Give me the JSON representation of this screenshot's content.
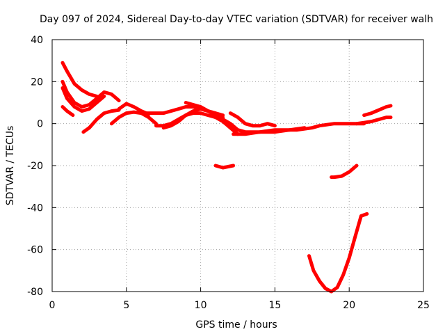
{
  "chart_data": {
    "type": "line",
    "title": "Day 097 of 2024, Sidereal Day-to-day VTEC variation (SDTVAR) for receiver walh",
    "xlabel": "GPS time / hours",
    "ylabel": "SDTVAR / TECUs",
    "xlim": [
      0,
      25
    ],
    "ylim": [
      -80,
      40
    ],
    "xticks": [
      0,
      5,
      10,
      15,
      20,
      25
    ],
    "yticks": [
      -80,
      -60,
      -40,
      -20,
      0,
      20,
      40
    ],
    "grid": true,
    "legend": "none",
    "color": "#ff0000",
    "series": [
      {
        "x": [
          0.7,
          1.0,
          1.5,
          2.0,
          2.5,
          3.0
        ],
        "y": [
          29,
          25,
          19,
          16,
          14,
          13
        ]
      },
      {
        "x": [
          0.7,
          1.0,
          1.5,
          2.0,
          2.5,
          3.0,
          3.5,
          4.0,
          4.5
        ],
        "y": [
          20,
          15,
          10,
          8,
          9,
          12,
          15,
          14,
          11
        ]
      },
      {
        "x": [
          0.7,
          1.0,
          1.5,
          2.0,
          2.5,
          3.0,
          3.5
        ],
        "y": [
          17,
          12,
          8,
          6,
          7,
          10,
          13
        ]
      },
      {
        "x": [
          0.7,
          1.0,
          1.4
        ],
        "y": [
          8,
          6,
          4
        ]
      },
      {
        "x": [
          2.1,
          2.5,
          3.0,
          3.5,
          4.0,
          4.5
        ],
        "y": [
          -4,
          -2,
          2,
          5,
          6,
          6.5
        ]
      },
      {
        "x": [
          4.0,
          4.5,
          5.0,
          5.5,
          6.0,
          6.5,
          7.0
        ],
        "y": [
          0,
          3,
          5,
          5.5,
          5,
          3,
          0
        ]
      },
      {
        "x": [
          4.5,
          5.0,
          5.5,
          6.0,
          6.5
        ],
        "y": [
          7,
          9.5,
          8,
          6,
          4.5
        ]
      },
      {
        "x": [
          6.0,
          6.5,
          7.0,
          7.5
        ],
        "y": [
          5,
          5,
          5,
          5
        ]
      },
      {
        "x": [
          7.0,
          7.5,
          8.0,
          8.5,
          9.0,
          9.5,
          10.0,
          10.5,
          11.0,
          11.5,
          12.0,
          12.5
        ],
        "y": [
          -1,
          -1,
          0,
          2,
          4,
          5,
          5,
          4,
          3,
          1,
          -2,
          -5
        ]
      },
      {
        "x": [
          7.5,
          8.0,
          8.5,
          9.0,
          9.5,
          10.0,
          10.5,
          11.0,
          11.5
        ],
        "y": [
          -2,
          -1,
          1,
          4,
          6,
          7,
          6,
          5,
          4
        ]
      },
      {
        "x": [
          7.5,
          8.0,
          8.5,
          9.0,
          9.5,
          10.0,
          10.5,
          11.0
        ],
        "y": [
          5,
          6,
          7,
          8,
          8,
          7,
          6,
          5
        ]
      },
      {
        "x": [
          9.0,
          9.5,
          10.0,
          10.5,
          11.0,
          11.5
        ],
        "y": [
          10,
          9,
          8,
          6,
          4,
          3
        ]
      },
      {
        "x": [
          11.0,
          11.5,
          12.0,
          12.5,
          13.0,
          13.5,
          14.0,
          14.5,
          15.0,
          15.5,
          16.0,
          16.5,
          17.0
        ],
        "y": [
          3,
          2,
          0,
          -3,
          -4,
          -4,
          -4,
          -3.5,
          -3,
          -3,
          -3,
          -2.5,
          -2
        ]
      },
      {
        "x": [
          12.0,
          12.5,
          13.0,
          13.5,
          14.0,
          14.5,
          15.0
        ],
        "y": [
          5,
          3,
          0,
          -1,
          -1,
          0,
          -1
        ]
      },
      {
        "x": [
          12.2,
          12.5,
          13.0,
          13.5,
          14.0,
          14.5,
          15.0,
          15.5,
          16.0,
          16.5,
          17.0,
          17.5,
          18.0,
          18.5,
          19.0,
          19.5,
          20.0,
          20.5,
          21.0
        ],
        "y": [
          -5,
          -5,
          -5,
          -4.5,
          -4,
          -4,
          -4,
          -3.5,
          -3,
          -3,
          -2.5,
          -2,
          -1,
          -0.5,
          0,
          0,
          0,
          0,
          0
        ]
      },
      {
        "x": [
          11.0,
          11.5,
          12.2
        ],
        "y": [
          -20,
          -21,
          -20
        ]
      },
      {
        "x": [
          18.8,
          19.0,
          19.5,
          20.0,
          20.5
        ],
        "y": [
          -25.5,
          -25.5,
          -25,
          -23,
          -20
        ]
      },
      {
        "x": [
          17.3,
          17.6,
          18.0,
          18.4,
          18.8,
          19.2,
          19.6,
          20.0,
          20.4,
          20.8,
          21.2
        ],
        "y": [
          -63,
          -70,
          -75,
          -78.5,
          -80,
          -78,
          -72,
          -64,
          -54,
          -44,
          -43
        ]
      },
      {
        "x": [
          20.5,
          21.0,
          21.5,
          22.0,
          22.5,
          22.8
        ],
        "y": [
          0,
          0.5,
          1,
          2,
          3,
          3
        ]
      },
      {
        "x": [
          21.0,
          21.5,
          22.0,
          22.5,
          22.8
        ],
        "y": [
          4,
          5,
          6.5,
          8,
          8.5
        ]
      }
    ]
  }
}
